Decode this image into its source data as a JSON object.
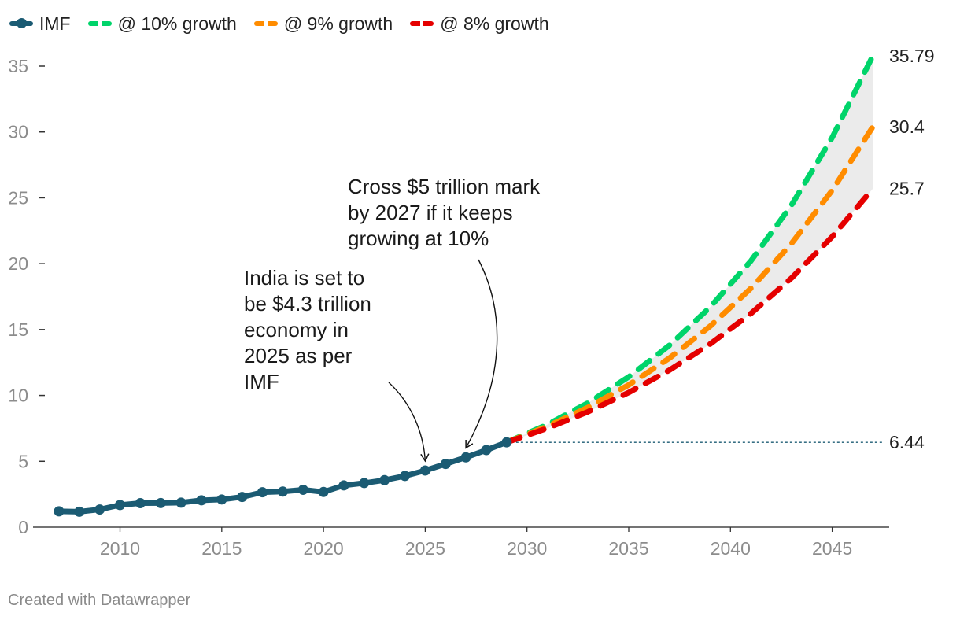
{
  "legend": {
    "items": [
      {
        "label": "IMF",
        "color": "#1b5b73",
        "style": "solid"
      },
      {
        "label": "@ 10% growth",
        "color": "#00d46a",
        "style": "dashed"
      },
      {
        "label": "@ 9% growth",
        "color": "#ff8c00",
        "style": "dashed"
      },
      {
        "label": "@ 8% growth",
        "color": "#e50000",
        "style": "dashed"
      }
    ]
  },
  "chart_data": {
    "type": "line",
    "x_range": [
      2006.5,
      2047.8
    ],
    "ylim": [
      0,
      35
    ],
    "x_ticks": [
      2010,
      2015,
      2020,
      2025,
      2030,
      2035,
      2040,
      2045
    ],
    "y_ticks": [
      0,
      5,
      10,
      15,
      20,
      25,
      30,
      35
    ],
    "grid": false,
    "series": [
      {
        "name": "IMF",
        "color": "#1b5b73",
        "x": [
          2007,
          2008,
          2009,
          2010,
          2011,
          2012,
          2013,
          2014,
          2015,
          2016,
          2017,
          2018,
          2019,
          2020,
          2021,
          2022,
          2023,
          2024,
          2025,
          2026,
          2027,
          2028,
          2029
        ],
        "values": [
          1.2,
          1.17,
          1.34,
          1.68,
          1.82,
          1.83,
          1.86,
          2.04,
          2.1,
          2.29,
          2.65,
          2.7,
          2.84,
          2.67,
          3.17,
          3.35,
          3.57,
          3.89,
          4.3,
          4.8,
          5.3,
          5.85,
          6.44
        ]
      },
      {
        "name": "@ 10% growth",
        "color": "#00d46a",
        "x": [
          2029,
          2031,
          2033,
          2035,
          2037,
          2039,
          2041,
          2043,
          2045,
          2047
        ],
        "values": [
          6.44,
          7.79,
          9.43,
          11.41,
          13.8,
          16.7,
          20.2,
          24.45,
          29.58,
          35.79
        ]
      },
      {
        "name": "@ 9% growth",
        "color": "#ff8c00",
        "x": [
          2029,
          2031,
          2033,
          2035,
          2037,
          2039,
          2041,
          2043,
          2045,
          2047
        ],
        "values": [
          6.44,
          7.65,
          9.09,
          10.8,
          12.83,
          15.25,
          18.12,
          21.53,
          25.57,
          30.4
        ]
      },
      {
        "name": "@ 8% growth",
        "color": "#e50000",
        "x": [
          2029,
          2031,
          2033,
          2035,
          2037,
          2039,
          2041,
          2043,
          2045,
          2047
        ],
        "values": [
          6.44,
          7.51,
          8.76,
          10.22,
          11.92,
          13.9,
          16.21,
          18.91,
          22.05,
          25.7
        ]
      }
    ],
    "reference_line": {
      "value": 6.44,
      "label": "6.44",
      "x_from": 2029
    },
    "end_labels": [
      {
        "value": 35.79,
        "label": "35.79"
      },
      {
        "value": 30.4,
        "label": "30.4"
      },
      {
        "value": 25.7,
        "label": "25.7"
      }
    ],
    "annotations": [
      {
        "lines": [
          "India is set to",
          "be $4.3 trillion",
          "economy in",
          "2025 as per",
          "IMF"
        ],
        "target_x": 2025,
        "target_y": 4.3
      },
      {
        "lines": [
          "Cross $5 trillion mark",
          "by 2027 if it keeps",
          "growing at 10%"
        ],
        "target_x": 2027,
        "target_y": 5.3
      }
    ]
  },
  "footer": {
    "text": "Created with Datawrapper"
  }
}
